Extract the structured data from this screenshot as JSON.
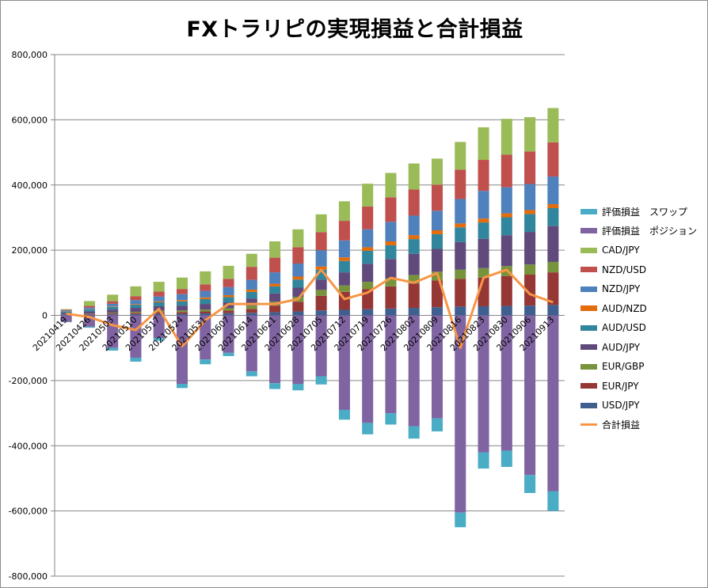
{
  "chart_data": {
    "type": "bar",
    "stacked": true,
    "title": "FXトラリピの実現損益と合計損益",
    "xlabel": "",
    "ylabel": "",
    "ylim": [
      -800000,
      800000
    ],
    "yticks": [
      800000,
      600000,
      400000,
      200000,
      0,
      -200000,
      -400000,
      -600000,
      -800000
    ],
    "ytick_labels": [
      "800,000",
      "600,000",
      "400,000",
      "200,000",
      "0",
      "-200,000",
      "-400,000",
      "-600,000",
      "-800,000"
    ],
    "grid": true,
    "legend_position": "right",
    "categories": [
      "20210419",
      "20210426",
      "20210503",
      "20210510",
      "20210517",
      "20210524",
      "20210531",
      "20210607",
      "20210614",
      "20210621",
      "20210628",
      "20210705",
      "20210712",
      "20210719",
      "20210726",
      "20210802",
      "20210809",
      "20210816",
      "20210823",
      "20210830",
      "20210906",
      "20210913"
    ],
    "xtick_labels": [
      "20210419",
      "20210426",
      "20210503",
      "20210510",
      "20210517",
      "20210524",
      "20210531",
      "20210607",
      "20210614",
      "20210621",
      "20210628",
      "20210705",
      "20210712",
      "20210719",
      "20210726",
      "20210802",
      "20210809",
      "20210816",
      "20210823",
      "20210830",
      "20210906",
      "20210913"
    ],
    "positive_series": [
      {
        "name": "USD/JPY",
        "color": "#3f5f8f",
        "values": [
          1000,
          2000,
          3000,
          4000,
          5000,
          5000,
          6000,
          7000,
          8000,
          10000,
          12000,
          15000,
          17000,
          19000,
          21000,
          23000,
          25000,
          27000,
          28000,
          29000,
          30000,
          32000
        ]
      },
      {
        "name": "EUR/JPY",
        "color": "#953735",
        "values": [
          1000,
          2000,
          3000,
          4000,
          5000,
          5000,
          6000,
          8000,
          12000,
          20000,
          30000,
          45000,
          55000,
          62000,
          68000,
          75000,
          82000,
          85000,
          88000,
          92000,
          95000,
          100000
        ]
      },
      {
        "name": "EUR/GBP",
        "color": "#77933c",
        "values": [
          500,
          1000,
          2000,
          3000,
          4000,
          5000,
          6000,
          7000,
          10000,
          12000,
          15000,
          18000,
          20000,
          22000,
          24000,
          26000,
          27000,
          28000,
          29000,
          30000,
          31000,
          32000
        ]
      },
      {
        "name": "AUD/JPY",
        "color": "#604a7b",
        "values": [
          5000,
          7000,
          10000,
          12000,
          14000,
          15000,
          17000,
          18000,
          22000,
          25000,
          28000,
          32000,
          40000,
          55000,
          60000,
          65000,
          70000,
          85000,
          90000,
          95000,
          100000,
          110000
        ]
      },
      {
        "name": "AUD/USD",
        "color": "#31859c",
        "values": [
          4000,
          6000,
          8000,
          10000,
          12000,
          13000,
          15000,
          16000,
          20000,
          22000,
          25000,
          30000,
          35000,
          40000,
          42000,
          45000,
          45000,
          45000,
          50000,
          55000,
          55000,
          55000
        ]
      },
      {
        "name": "AUD/NZD",
        "color": "#e46c0a",
        "values": [
          500,
          1000,
          1500,
          2000,
          3000,
          4000,
          5000,
          6000,
          7000,
          8000,
          9000,
          10000,
          11000,
          11000,
          12000,
          12000,
          12000,
          12000,
          12000,
          12000,
          12000,
          12000
        ]
      },
      {
        "name": "NZD/JPY",
        "color": "#4f81bd",
        "values": [
          3000,
          5000,
          8000,
          12000,
          15000,
          18000,
          20000,
          25000,
          30000,
          35000,
          40000,
          50000,
          52000,
          55000,
          60000,
          60000,
          60000,
          75000,
          85000,
          80000,
          80000,
          85000
        ]
      },
      {
        "name": "NZD/USD",
        "color": "#c0504d",
        "values": [
          2000,
          5000,
          8000,
          12000,
          15000,
          16000,
          20000,
          25000,
          40000,
          45000,
          50000,
          55000,
          60000,
          70000,
          75000,
          80000,
          80000,
          90000,
          95000,
          100000,
          100000,
          105000
        ]
      },
      {
        "name": "CAD/JPY",
        "color": "#9bbb59",
        "values": [
          2000,
          15000,
          20000,
          30000,
          30000,
          35000,
          40000,
          40000,
          40000,
          50000,
          55000,
          55000,
          60000,
          70000,
          75000,
          80000,
          80000,
          85000,
          100000,
          110000,
          105000,
          105000
        ]
      }
    ],
    "negative_series": [
      {
        "name": "評価損益　ポジション",
        "color": "#8064a2",
        "values": [
          -20000,
          -35000,
          -100000,
          -130000,
          -70000,
          -210000,
          -135000,
          -115000,
          -172000,
          -208000,
          -210000,
          -187000,
          -290000,
          -330000,
          -300000,
          -340000,
          -316000,
          -605000,
          -420000,
          -415000,
          -490000,
          -540000
        ]
      },
      {
        "name": "評価損益　スワップ",
        "color": "#4bacc6",
        "values": [
          -1000,
          -3000,
          -8000,
          -12000,
          -8000,
          -13000,
          -15000,
          -10000,
          -15000,
          -18000,
          -20000,
          -25000,
          -30000,
          -35000,
          -35000,
          -38000,
          -40000,
          -45000,
          -50000,
          -50000,
          -55000,
          -60000
        ]
      }
    ],
    "line_series": {
      "name": "合計損益",
      "color": "#f79646",
      "values": [
        5000,
        -5000,
        -30000,
        -45000,
        20000,
        -95000,
        -15000,
        35000,
        35000,
        35000,
        50000,
        140000,
        50000,
        70000,
        115000,
        100000,
        130000,
        -100000,
        115000,
        140000,
        65000,
        40000
      ]
    }
  }
}
